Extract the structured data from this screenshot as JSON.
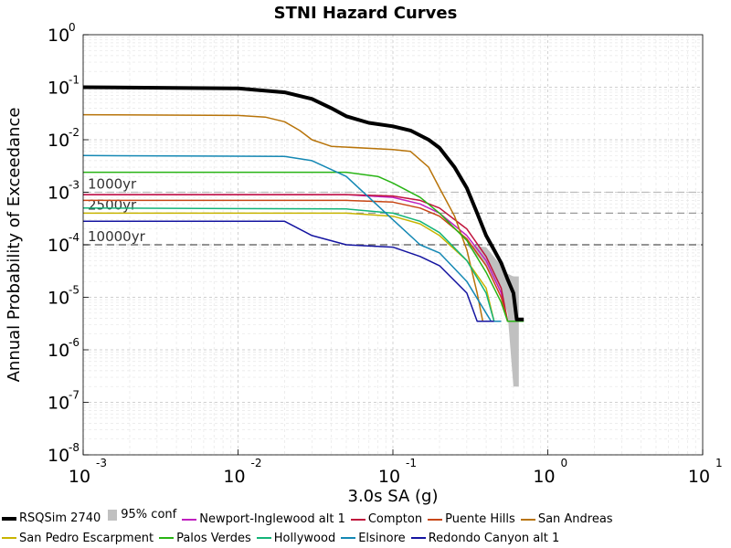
{
  "chart_data": {
    "type": "line",
    "title": "STNI Hazard Curves",
    "xlabel": "3.0s SA (g)",
    "ylabel": "Annual Probability of Exceedance",
    "xscale": "log",
    "yscale": "log",
    "xlim": [
      0.001,
      10
    ],
    "ylim": [
      1e-08,
      1
    ],
    "grid": true,
    "x_ticks": [
      {
        "base": "10",
        "exp": "-3"
      },
      {
        "base": "10",
        "exp": "-2"
      },
      {
        "base": "10",
        "exp": "-1"
      },
      {
        "base": "10",
        "exp": "0"
      },
      {
        "base": "10",
        "exp": "1"
      }
    ],
    "y_ticks": [
      {
        "base": "10",
        "exp": "0"
      },
      {
        "base": "10",
        "exp": "-1"
      },
      {
        "base": "10",
        "exp": "-2"
      },
      {
        "base": "10",
        "exp": "-3"
      },
      {
        "base": "10",
        "exp": "-4"
      },
      {
        "base": "10",
        "exp": "-5"
      },
      {
        "base": "10",
        "exp": "-6"
      },
      {
        "base": "10",
        "exp": "-7"
      },
      {
        "base": "10",
        "exp": "-8"
      }
    ],
    "reference_lines": [
      {
        "label": "1000yr",
        "y": 0.001,
        "color": "#bbbbbb"
      },
      {
        "label": "2500yr",
        "y": 0.0004,
        "color": "#999999"
      },
      {
        "label": "10000yr",
        "y": 0.0001,
        "color": "#555555"
      }
    ],
    "confidence_band": {
      "name": "95% conf",
      "color": "#c0c0c0",
      "points": [
        [
          0.3,
          0.0001,
          0.0001
        ],
        [
          0.4,
          4e-05,
          9e-05
        ],
        [
          0.5,
          1.2e-05,
          4e-05
        ],
        [
          0.55,
          5e-06,
          2.8e-05
        ],
        [
          0.6,
          2e-07,
          2.5e-05
        ],
        [
          0.65,
          2e-07,
          2.5e-05
        ]
      ]
    },
    "series": [
      {
        "name": "RSQSim 2740",
        "color": "#000000",
        "width": 4,
        "points": [
          [
            0.001,
            0.1
          ],
          [
            0.01,
            0.095
          ],
          [
            0.02,
            0.08
          ],
          [
            0.03,
            0.06
          ],
          [
            0.04,
            0.04
          ],
          [
            0.05,
            0.028
          ],
          [
            0.07,
            0.021
          ],
          [
            0.1,
            0.018
          ],
          [
            0.13,
            0.015
          ],
          [
            0.17,
            0.01
          ],
          [
            0.2,
            0.007
          ],
          [
            0.25,
            0.003
          ],
          [
            0.3,
            0.0012
          ],
          [
            0.35,
            0.0004
          ],
          [
            0.4,
            0.00015
          ],
          [
            0.45,
            8e-05
          ],
          [
            0.5,
            4.5e-05
          ],
          [
            0.55,
            2.2e-05
          ],
          [
            0.6,
            1.2e-05
          ],
          [
            0.63,
            3.8e-06
          ],
          [
            0.7,
            3.8e-06
          ]
        ]
      },
      {
        "name": "95% conf",
        "color": "#c0c0c0",
        "band": true
      },
      {
        "name": "Newport-Inglewood alt 1",
        "color": "#c020c0",
        "width": 1.5,
        "points": [
          [
            0.001,
            0.0009
          ],
          [
            0.05,
            0.0009
          ],
          [
            0.1,
            0.0008
          ],
          [
            0.15,
            0.0006
          ],
          [
            0.2,
            0.0004
          ],
          [
            0.3,
            0.00015
          ],
          [
            0.4,
            5e-05
          ],
          [
            0.5,
            1.2e-05
          ],
          [
            0.55,
            3.5e-06
          ],
          [
            0.6,
            3.5e-06
          ]
        ]
      },
      {
        "name": "Compton",
        "color": "#c0143c",
        "width": 1.5,
        "points": [
          [
            0.001,
            0.0009
          ],
          [
            0.05,
            0.0009
          ],
          [
            0.1,
            0.00085
          ],
          [
            0.15,
            0.0007
          ],
          [
            0.2,
            0.0005
          ],
          [
            0.3,
            0.0002
          ],
          [
            0.4,
            6e-05
          ],
          [
            0.5,
            1.5e-05
          ],
          [
            0.55,
            3.5e-06
          ],
          [
            0.6,
            3.5e-06
          ]
        ]
      },
      {
        "name": "Puente Hills",
        "color": "#c84614",
        "width": 1.5,
        "points": [
          [
            0.001,
            0.0007
          ],
          [
            0.05,
            0.0007
          ],
          [
            0.1,
            0.00065
          ],
          [
            0.15,
            0.0005
          ],
          [
            0.2,
            0.00035
          ],
          [
            0.3,
            0.00013
          ],
          [
            0.4,
            4e-05
          ],
          [
            0.5,
            1e-05
          ],
          [
            0.55,
            3.5e-06
          ],
          [
            0.6,
            3.5e-06
          ]
        ]
      },
      {
        "name": "San Andreas",
        "color": "#b8740a",
        "width": 1.5,
        "points": [
          [
            0.001,
            0.03
          ],
          [
            0.01,
            0.029
          ],
          [
            0.015,
            0.027
          ],
          [
            0.02,
            0.022
          ],
          [
            0.025,
            0.015
          ],
          [
            0.03,
            0.01
          ],
          [
            0.04,
            0.0075
          ],
          [
            0.1,
            0.0065
          ],
          [
            0.13,
            0.006
          ],
          [
            0.17,
            0.003
          ],
          [
            0.2,
            0.0012
          ],
          [
            0.25,
            0.00035
          ],
          [
            0.3,
            8e-05
          ],
          [
            0.35,
            1.2e-05
          ],
          [
            0.38,
            3.5e-06
          ],
          [
            0.45,
            3.5e-06
          ]
        ]
      },
      {
        "name": "San Pedro Escarpment",
        "color": "#c8b400",
        "width": 1.5,
        "points": [
          [
            0.001,
            0.0004
          ],
          [
            0.05,
            0.0004
          ],
          [
            0.1,
            0.00035
          ],
          [
            0.15,
            0.00025
          ],
          [
            0.2,
            0.00015
          ],
          [
            0.3,
            5e-05
          ],
          [
            0.4,
            1.5e-05
          ],
          [
            0.45,
            3.5e-06
          ],
          [
            0.5,
            3.5e-06
          ]
        ]
      },
      {
        "name": "Palos Verdes",
        "color": "#28b414",
        "width": 1.5,
        "points": [
          [
            0.001,
            0.0024
          ],
          [
            0.05,
            0.0024
          ],
          [
            0.08,
            0.002
          ],
          [
            0.1,
            0.0015
          ],
          [
            0.15,
            0.0008
          ],
          [
            0.2,
            0.0004
          ],
          [
            0.3,
            0.00012
          ],
          [
            0.4,
            3e-05
          ],
          [
            0.5,
            8e-06
          ],
          [
            0.55,
            3.5e-06
          ],
          [
            0.7,
            3.5e-06
          ]
        ]
      },
      {
        "name": "Hollywood",
        "color": "#14b478",
        "width": 1.5,
        "points": [
          [
            0.001,
            0.0005
          ],
          [
            0.05,
            0.00048
          ],
          [
            0.1,
            0.0004
          ],
          [
            0.15,
            0.00028
          ],
          [
            0.2,
            0.00017
          ],
          [
            0.3,
            5e-05
          ],
          [
            0.4,
            1.2e-05
          ],
          [
            0.45,
            3.5e-06
          ],
          [
            0.5,
            3.5e-06
          ]
        ]
      },
      {
        "name": "Elsinore",
        "color": "#1488b4",
        "width": 1.5,
        "points": [
          [
            0.001,
            0.005
          ],
          [
            0.02,
            0.0048
          ],
          [
            0.03,
            0.004
          ],
          [
            0.05,
            0.002
          ],
          [
            0.07,
            0.0008
          ],
          [
            0.1,
            0.0003
          ],
          [
            0.15,
            0.0001
          ],
          [
            0.2,
            7e-05
          ],
          [
            0.3,
            2e-05
          ],
          [
            0.4,
            5e-06
          ],
          [
            0.43,
            3.5e-06
          ],
          [
            0.5,
            3.5e-06
          ]
        ]
      },
      {
        "name": "Redondo Canyon alt 1",
        "color": "#1414a0",
        "width": 1.5,
        "points": [
          [
            0.001,
            0.00028
          ],
          [
            0.02,
            0.00028
          ],
          [
            0.03,
            0.00015
          ],
          [
            0.05,
            0.0001
          ],
          [
            0.1,
            9e-05
          ],
          [
            0.15,
            6e-05
          ],
          [
            0.2,
            4e-05
          ],
          [
            0.3,
            1.2e-05
          ],
          [
            0.35,
            3.5e-06
          ],
          [
            0.45,
            3.5e-06
          ]
        ]
      }
    ]
  }
}
